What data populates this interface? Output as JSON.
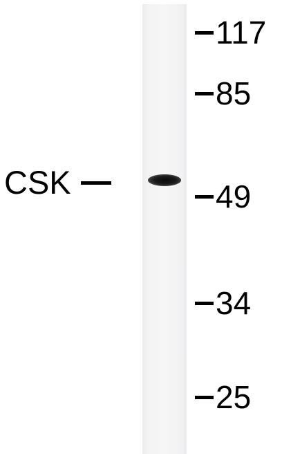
{
  "blot": {
    "protein_label": "CSK",
    "markers": [
      {
        "label": "117"
      },
      {
        "label": "85"
      },
      {
        "label": "49"
      },
      {
        "label": "34"
      },
      {
        "label": "25"
      }
    ]
  }
}
